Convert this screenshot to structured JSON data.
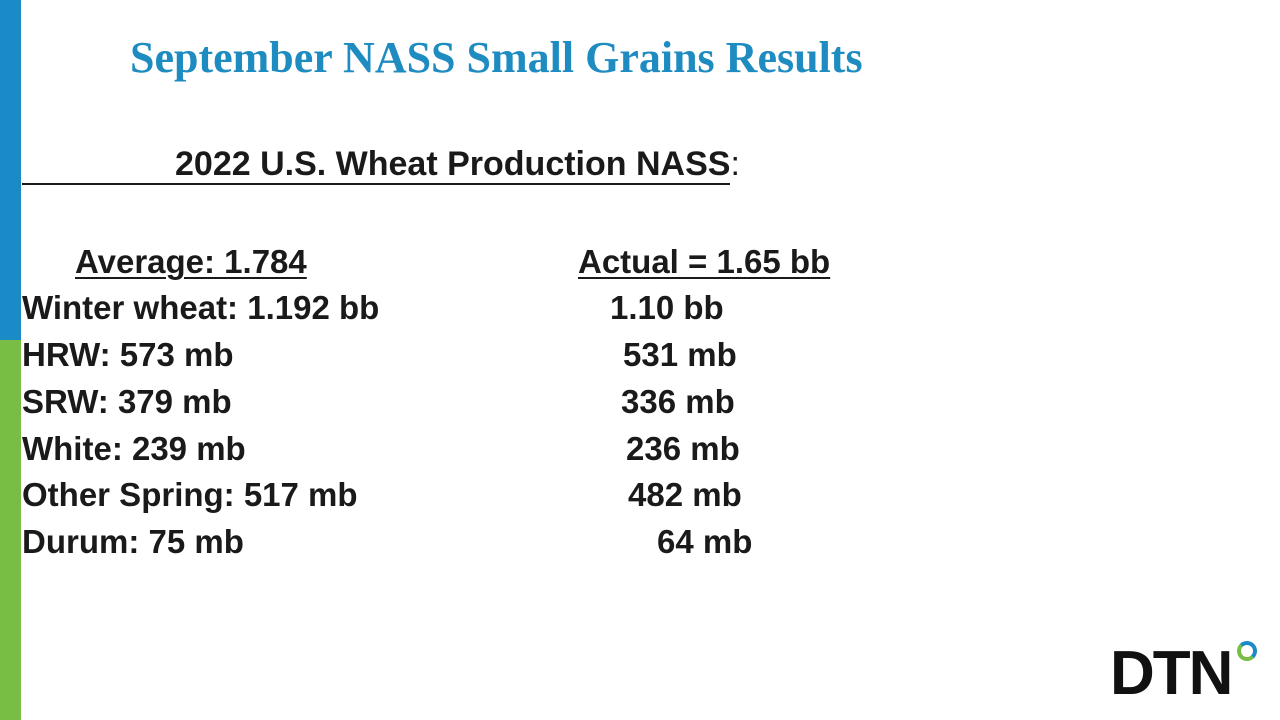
{
  "title": "September NASS Small Grains Results",
  "subtitle": {
    "text": "2022 U.S. Wheat Production NASS",
    "suffix": ":"
  },
  "header": {
    "left": "Average: 1.784",
    "right": "Actual = 1.65 bb"
  },
  "rows": [
    [
      "Winter wheat: 1.192 bb",
      "1.10 bb"
    ],
    [
      "HRW: 573 mb",
      "531 mb"
    ],
    [
      "SRW: 379 mb",
      "336 mb"
    ],
    [
      "White: 239 mb",
      "236 mb"
    ],
    [
      "Other Spring: 517 mb",
      "482 mb"
    ],
    [
      "Durum: 75 mb",
      "64 mb"
    ]
  ],
  "logo": "DTN"
}
